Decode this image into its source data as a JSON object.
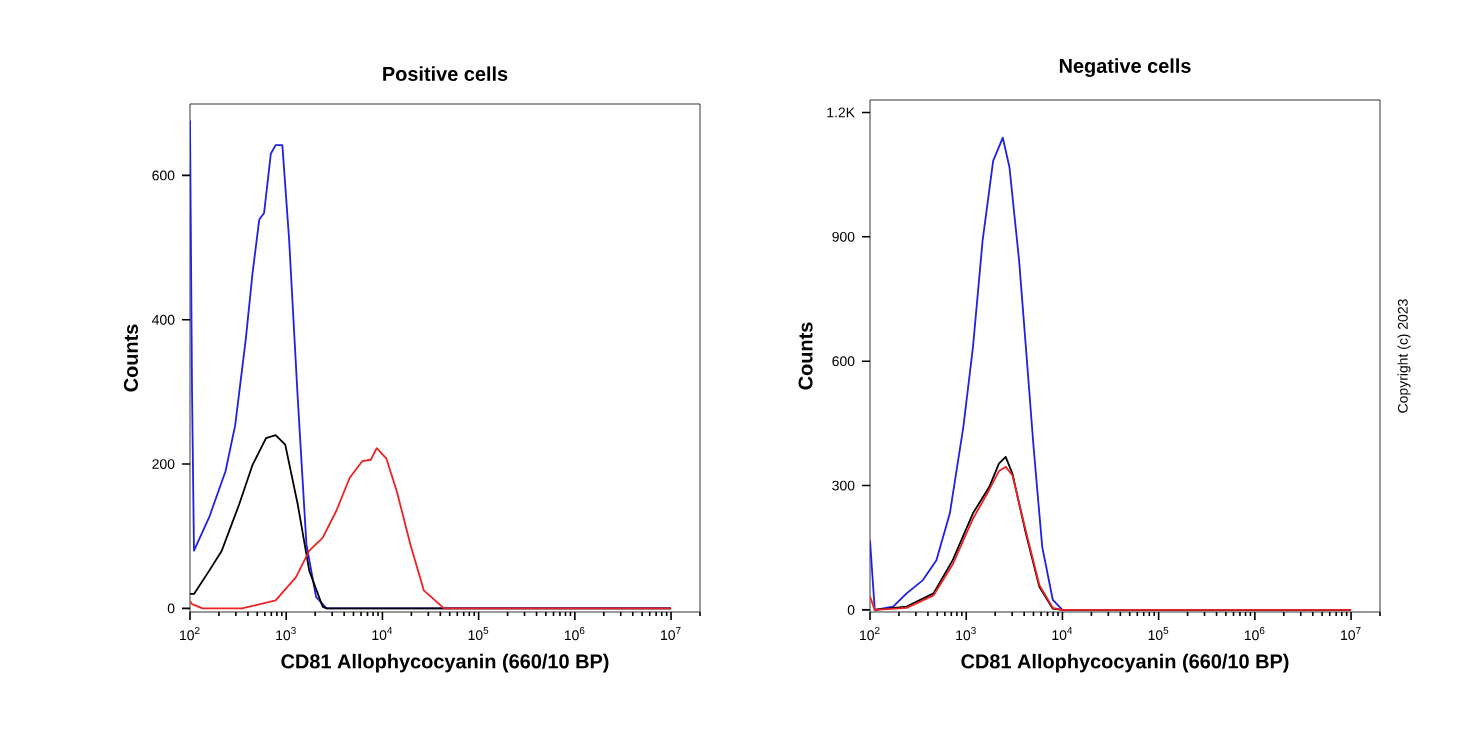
{
  "chart_data": [
    {
      "type": "line",
      "title": "Positive cells",
      "xlabel": "CD81 Allophycocyanin (660/10 BP)",
      "ylabel": "Counts",
      "log": "x",
      "xlim": [
        100,
        20000000
      ],
      "ylim": [
        -5,
        699
      ],
      "xticks": [
        {
          "value": 100,
          "label": "10$^{2}$"
        },
        {
          "value": 1000,
          "label": "10$^{3}$"
        },
        {
          "value": 10000,
          "label": "10$^{4}$"
        },
        {
          "value": 100000,
          "label": "10$^{5}$"
        },
        {
          "value": 1000000,
          "label": "10$^{6}$"
        },
        {
          "value": 10000000,
          "label": "10$^{7}$"
        }
      ],
      "yticks": [
        0,
        200,
        400,
        600
      ],
      "series": [
        {
          "color": "#1f1fe6",
          "x": [
            100,
            105,
            110,
            158,
            234,
            295,
            380,
            447,
            525,
            589,
            692,
            776,
            912,
            1072,
            1318,
            1622,
            2042,
            2630,
            10000000
          ],
          "values": [
            676,
            300,
            80,
            126,
            190,
            254,
            373,
            465,
            539,
            548,
            630,
            642,
            642,
            511,
            291,
            89,
            16,
            0,
            0
          ]
        },
        {
          "color": "#000000",
          "x": [
            100,
            110,
            158,
            214,
            324,
            447,
            617,
            776,
            977,
            1318,
            1738,
            2399,
            2630,
            10000000
          ],
          "values": [
            20,
            20,
            52,
            80,
            144,
            199,
            236,
            240,
            227,
            144,
            52,
            2,
            0,
            0
          ]
        },
        {
          "color": "#ee2222",
          "x": [
            100,
            105,
            135,
            347,
            776,
            1259,
            1738,
            2399,
            3311,
            4571,
            6166,
            7586,
            8710,
            10965,
            14125,
            19498,
            26915,
            43652,
            10000000
          ],
          "values": [
            10,
            6,
            0,
            0,
            11,
            43,
            80,
            98,
            135,
            181,
            204,
            206,
            222,
            208,
            162,
            89,
            25,
            0,
            0
          ]
        }
      ]
    },
    {
      "type": "line",
      "title": "Negative cells",
      "xlabel": "CD81 Allophycocyanin (660/10 BP)",
      "ylabel": "Counts",
      "log": "x",
      "xlim": [
        100,
        20000000
      ],
      "ylim": [
        -5,
        1230
      ],
      "xticks": [
        {
          "value": 100,
          "label": "10$^{2}$"
        },
        {
          "value": 1000,
          "label": "10$^{3}$"
        },
        {
          "value": 10000,
          "label": "10$^{4}$"
        },
        {
          "value": 100000,
          "label": "10$^{5}$"
        },
        {
          "value": 1000000,
          "label": "10$^{6}$"
        },
        {
          "value": 10000000,
          "label": "10$^{7}$"
        }
      ],
      "yticks": [
        0,
        300,
        600,
        900,
        {
          "value": 1200,
          "label": "1.2K"
        }
      ],
      "annotations": [
        "Copyright (c) 2023"
      ],
      "series": [
        {
          "color": "#1f1fe6",
          "x": [
            100,
            112,
            174,
            240,
            355,
            490,
            676,
            933,
            1175,
            1479,
            1905,
            2399,
            2818,
            3548,
            4169,
            5012,
            6166,
            7943,
            10000,
            10000000
          ],
          "values": [
            168,
            0,
            8,
            40,
            72,
            120,
            233,
            441,
            634,
            890,
            1083,
            1139,
            1067,
            842,
            634,
            393,
            152,
            24,
            0,
            0
          ]
        },
        {
          "color": "#000000",
          "x": [
            112,
            240,
            457,
            724,
            1175,
            1738,
            2188,
            2570,
            3020,
            4169,
            5754,
            7943,
            10000,
            10000000
          ],
          "values": [
            0,
            8,
            40,
            120,
            233,
            297,
            353,
            369,
            329,
            184,
            56,
            3,
            0,
            0
          ]
        },
        {
          "color": "#ee2222",
          "x": [
            100,
            112,
            240,
            457,
            724,
            1175,
            1738,
            2188,
            2570,
            3020,
            4169,
            5754,
            7943,
            10000,
            10000000
          ],
          "values": [
            32,
            0,
            5,
            35,
            110,
            220,
            290,
            335,
            345,
            325,
            190,
            60,
            5,
            0,
            0
          ]
        }
      ]
    }
  ]
}
